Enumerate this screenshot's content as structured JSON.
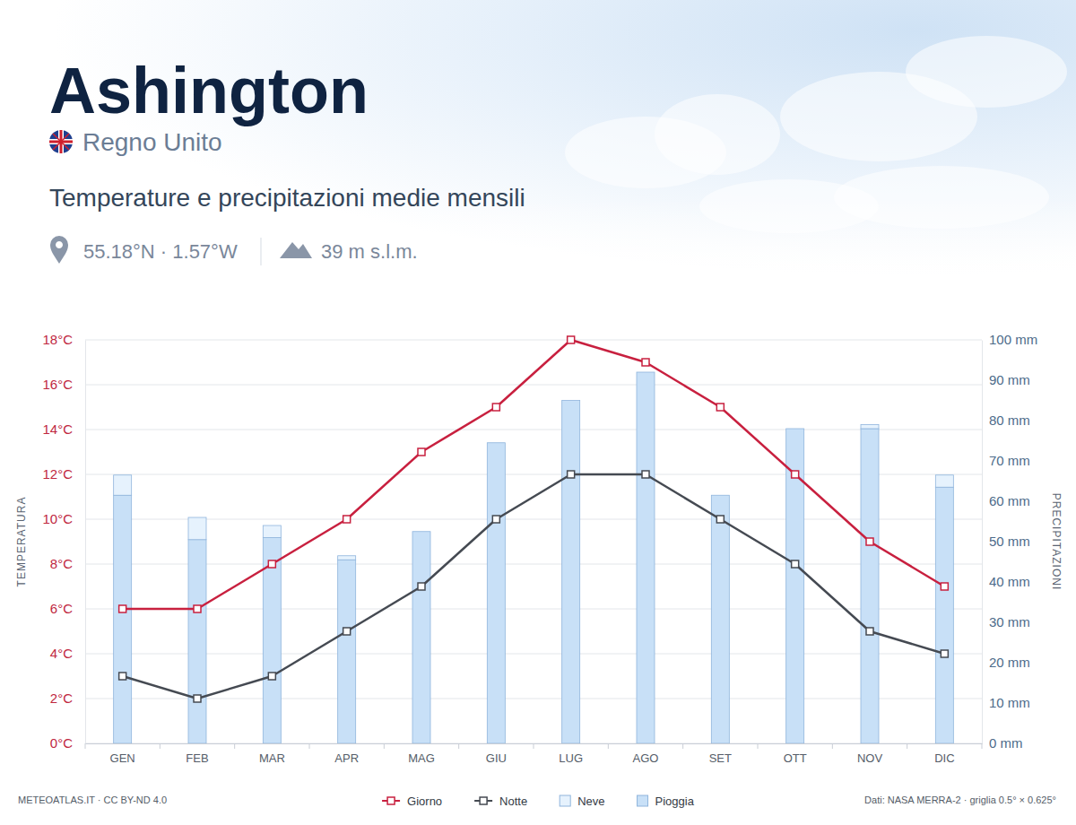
{
  "chart_data": {
    "type": "bar",
    "title": "Ashington",
    "country": "Regno Unito",
    "subtitle": "Temperature e precipitazioni medie mensili",
    "coordinates": "55.18°N · 1.57°W",
    "elevation": "39 m s.l.m.",
    "source": "METEOATLAS.IT · CC BY-ND 4.0",
    "credit": "Dati: NASA MERRA-2 · griglia 0.5° × 0.625°",
    "ylabel": "TEMPERATURA",
    "y2label": "PRECIPITAZIONI",
    "categories": [
      "GEN",
      "FEB",
      "MAR",
      "APR",
      "MAG",
      "GIU",
      "LUG",
      "AGO",
      "SET",
      "OTT",
      "NOV",
      "DIC"
    ],
    "series": [
      {
        "name": "Giorno",
        "type": "line",
        "color": "#c8203f",
        "marker": "square",
        "values": [
          6,
          6,
          8,
          10,
          13,
          15,
          18,
          17,
          15,
          12,
          9,
          7
        ]
      },
      {
        "name": "Notte",
        "type": "line",
        "color": "#454a52",
        "marker": "square",
        "values": [
          3,
          2,
          3,
          5,
          7,
          10,
          12,
          12,
          10,
          8,
          5,
          4
        ]
      },
      {
        "name": "Neve",
        "type": "bar",
        "axis": "y2",
        "color": "#e6f2fd",
        "values": [
          5,
          5.5,
          3,
          1,
          0,
          0,
          0,
          0,
          0,
          0,
          1,
          3
        ]
      },
      {
        "name": "Pioggia",
        "type": "bar",
        "axis": "y2",
        "color": "#c8e0f7",
        "values": [
          61.5,
          50.5,
          51,
          45.5,
          52.5,
          74.5,
          85,
          92,
          61.5,
          78,
          78,
          63.5
        ]
      }
    ],
    "stacked": true,
    "grid": true,
    "legend": "bottom",
    "ylim": [
      0,
      18
    ],
    "yticks": [
      {
        "value": 0,
        "label": "0°C"
      },
      {
        "value": 2,
        "label": "2°C"
      },
      {
        "value": 4,
        "label": "4°C"
      },
      {
        "value": 6,
        "label": "6°C"
      },
      {
        "value": 8,
        "label": "8°C"
      },
      {
        "value": 10,
        "label": "10°C"
      },
      {
        "value": 12,
        "label": "12°C"
      },
      {
        "value": 14,
        "label": "14°C"
      },
      {
        "value": 16,
        "label": "16°C"
      },
      {
        "value": 18,
        "label": "18°C"
      }
    ],
    "y2lim": [
      0,
      100
    ],
    "y2ticks": [
      {
        "value": 0,
        "label": "0 mm"
      },
      {
        "value": 10,
        "label": "10 mm"
      },
      {
        "value": 20,
        "label": "20 mm"
      },
      {
        "value": 30,
        "label": "30 mm"
      },
      {
        "value": 40,
        "label": "40 mm"
      },
      {
        "value": 50,
        "label": "50 mm"
      },
      {
        "value": 60,
        "label": "60 mm"
      },
      {
        "value": 70,
        "label": "70 mm"
      },
      {
        "value": 80,
        "label": "80 mm"
      },
      {
        "value": 90,
        "label": "90 mm"
      },
      {
        "value": 100,
        "label": "100 mm"
      }
    ]
  }
}
